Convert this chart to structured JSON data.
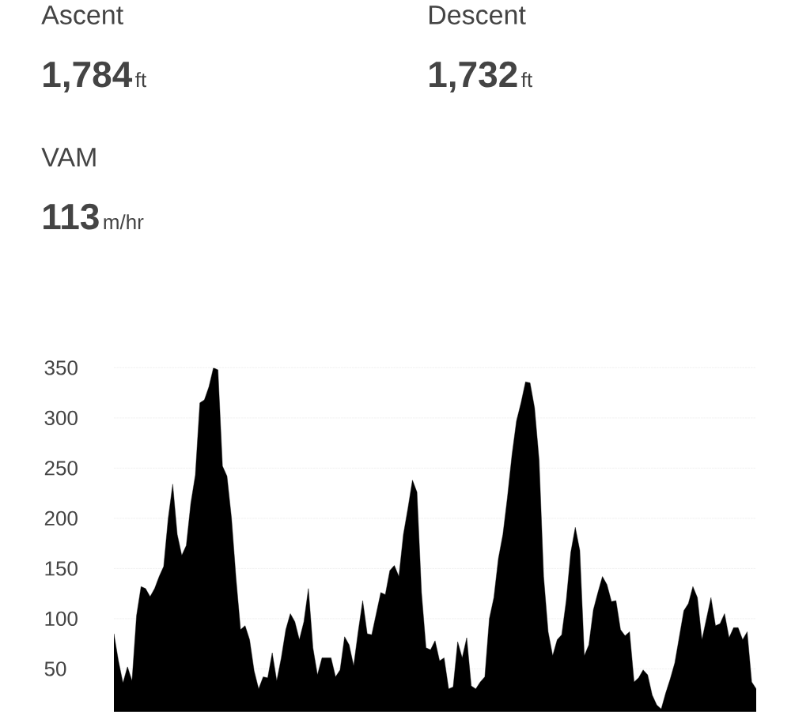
{
  "chart_data": {
    "type": "area",
    "annotations": [
      "Ascent",
      "1,784",
      "ft",
      "Descent",
      "1,732",
      "ft",
      "VAM",
      "113",
      "m/hr"
    ],
    "categories": [
      null,
      null,
      null,
      null,
      null,
      null,
      null,
      null,
      null,
      null,
      null,
      null,
      null,
      null,
      null,
      null,
      null,
      null,
      null,
      null,
      null,
      null,
      null,
      null,
      null,
      null,
      null,
      null,
      null,
      null,
      null,
      null,
      null,
      null,
      null,
      null,
      null,
      null,
      null,
      null,
      null,
      null,
      null,
      null,
      null,
      null,
      null,
      null,
      null,
      null,
      null,
      null,
      null,
      null,
      null,
      null,
      null,
      null,
      null,
      null,
      null,
      null,
      null,
      null,
      null,
      null,
      null,
      null,
      null,
      null,
      null,
      null,
      null,
      null,
      null,
      null,
      null,
      null,
      null,
      null,
      null,
      null,
      null,
      null,
      null,
      null,
      null,
      null,
      null,
      null,
      null,
      null,
      null,
      null,
      null,
      null,
      null,
      null,
      null,
      null,
      null,
      null,
      null,
      null,
      null,
      null,
      null,
      null,
      null,
      null,
      null,
      null,
      null,
      null,
      null,
      null,
      null,
      null,
      null,
      null,
      null,
      null,
      null,
      null,
      null,
      null,
      null,
      null,
      null,
      null,
      null,
      null,
      null,
      null,
      null,
      null,
      null,
      null,
      null,
      null,
      null,
      null,
      null
    ],
    "series": [
      {
        "color": "#000000",
        "values": [
          85,
          58,
          36,
          52,
          38,
          103,
          132,
          130,
          122,
          130,
          142,
          152,
          200,
          234,
          184,
          163,
          173,
          215,
          243,
          315,
          318,
          331,
          350,
          348,
          252,
          242,
          200,
          140,
          89,
          93,
          79,
          48,
          30,
          42,
          41,
          66,
          38,
          61,
          89,
          105,
          97,
          79,
          97,
          130,
          71,
          44,
          61,
          61,
          61,
          42,
          49,
          82,
          74,
          53,
          87,
          118,
          85,
          84,
          105,
          126,
          124,
          148,
          153,
          142,
          184,
          210,
          238,
          226,
          126,
          71,
          69,
          78,
          58,
          61,
          30,
          32,
          77,
          61,
          81,
          33,
          30,
          37,
          42,
          100,
          121,
          160,
          184,
          221,
          263,
          297,
          315,
          336,
          335,
          310,
          258,
          142,
          87,
          63,
          79,
          84,
          118,
          166,
          191,
          168,
          63,
          74,
          109,
          126,
          142,
          134,
          117,
          118,
          89,
          83,
          87,
          37,
          41,
          49,
          44,
          24,
          14,
          10,
          26,
          40,
          56,
          82,
          108,
          115,
          132,
          121,
          79,
          100,
          121,
          93,
          95,
          105,
          81,
          91,
          91,
          79,
          87,
          37,
          30
        ]
      }
    ],
    "ylim": [
      7,
      350
    ],
    "yticks": [
      50,
      100,
      150,
      200,
      250,
      300,
      350
    ],
    "grid": "y",
    "tick_labels": "y"
  }
}
